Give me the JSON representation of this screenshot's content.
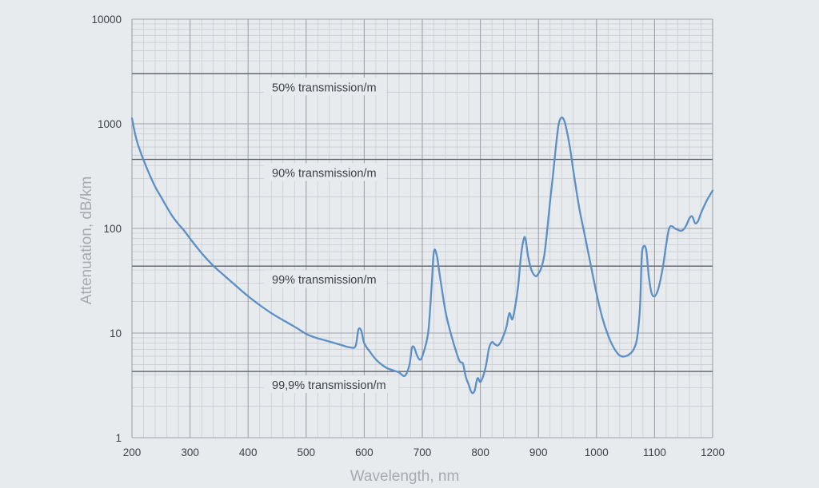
{
  "chart_data": {
    "type": "line",
    "xlabel": "Wavelength, nm",
    "ylabel": "Attenuation, dB/km",
    "xlim": [
      200,
      1200
    ],
    "ylim": [
      1,
      10000
    ],
    "y_scale": "log",
    "x_ticks": [
      "200",
      "300",
      "400",
      "500",
      "600",
      "700",
      "800",
      "900",
      "1000",
      "1100",
      "1200"
    ],
    "y_ticks": [
      "1",
      "10",
      "100",
      "1000",
      "10000"
    ],
    "grid": true,
    "colors": {
      "background": "#e8ebee",
      "line": "#5b8fc6",
      "grid_major": "#9ea3a8",
      "grid_minor": "#c9cdd1",
      "reference": "#5a5f66",
      "axis_text": "#3c4146",
      "axis_label": "#a7abb0"
    },
    "reference_lines": [
      {
        "value": 3010,
        "label": "50% transmission/m"
      },
      {
        "value": 457,
        "label": "90% transmission/m"
      },
      {
        "value": 43.6,
        "label": "99% transmission/m"
      },
      {
        "value": 4.3,
        "label": "99,9% transmission/m"
      }
    ],
    "series": [
      {
        "x": [
          200,
          205,
          210,
          220,
          230,
          240,
          250,
          260,
          270,
          280,
          290,
          300,
          320,
          340,
          360,
          380,
          400,
          420,
          440,
          460,
          480,
          500,
          510,
          520,
          540,
          560,
          575,
          585,
          590,
          595,
          600,
          610,
          620,
          630,
          640,
          650,
          660,
          670,
          678,
          682,
          686,
          690,
          695,
          700,
          710,
          716,
          720,
          725,
          730,
          740,
          750,
          760,
          765,
          770,
          775,
          780,
          785,
          790,
          795,
          800,
          805,
          810,
          815,
          820,
          825,
          830,
          835,
          840,
          845,
          850,
          855,
          860,
          865,
          870,
          875,
          878,
          882,
          888,
          895,
          900,
          905,
          910,
          915,
          920,
          925,
          930,
          935,
          940,
          945,
          950,
          955,
          960,
          970,
          980,
          990,
          1000,
          1010,
          1020,
          1030,
          1040,
          1050,
          1060,
          1065,
          1070,
          1075,
          1078,
          1082,
          1086,
          1090,
          1095,
          1100,
          1105,
          1110,
          1115,
          1120,
          1125,
          1130,
          1135,
          1140,
          1145,
          1150,
          1155,
          1160,
          1165,
          1170,
          1175,
          1180,
          1190,
          1200
        ],
        "y": [
          1130,
          820,
          640,
          450,
          330,
          250,
          200,
          160,
          130,
          110,
          95,
          80,
          58,
          44,
          35,
          28,
          22.5,
          18.5,
          15.5,
          13.3,
          11.5,
          9.8,
          9.3,
          8.9,
          8.3,
          7.7,
          7.3,
          7.5,
          10.8,
          10.5,
          8.0,
          6.6,
          5.6,
          5.0,
          4.6,
          4.4,
          4.2,
          3.9,
          5.0,
          7.2,
          7.3,
          6.3,
          5.6,
          6.0,
          10,
          28,
          60,
          55,
          36,
          16,
          9.5,
          6.2,
          5.3,
          5.1,
          3.8,
          3.2,
          2.7,
          2.8,
          3.7,
          3.4,
          3.9,
          5.0,
          7.2,
          8.2,
          7.8,
          7.6,
          8.2,
          9.5,
          11.5,
          15.5,
          13.5,
          18,
          28,
          55,
          80,
          78,
          55,
          40,
          35,
          37,
          42,
          55,
          95,
          180,
          320,
          600,
          1000,
          1150,
          1050,
          800,
          560,
          360,
          160,
          85,
          45,
          24,
          14,
          9.5,
          7.2,
          6.1,
          6.0,
          6.5,
          7.2,
          9.0,
          18,
          55,
          68,
          60,
          35,
          24,
          22.5,
          25,
          32,
          45,
          70,
          100,
          105,
          100,
          97,
          95,
          98,
          108,
          125,
          130,
          112,
          118,
          140,
          185,
          230
        ]
      }
    ]
  }
}
